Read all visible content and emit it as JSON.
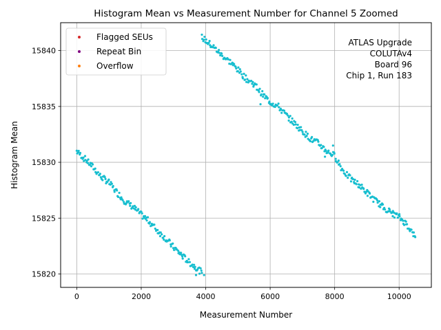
{
  "chart_data": {
    "type": "scatter",
    "title": "Histogram Mean vs Measurement Number for Channel 5 Zoomed",
    "xlabel": "Measurement Number",
    "ylabel": "Histogram Mean",
    "xlim": [
      -500,
      11000
    ],
    "ylim": [
      15818.8,
      15842.5
    ],
    "xticks": [
      0,
      2000,
      4000,
      6000,
      8000,
      10000
    ],
    "yticks": [
      15820,
      15825,
      15830,
      15835,
      15840
    ],
    "grid": true,
    "legend_position": "top-left",
    "legend": [
      {
        "label": "Flagged SEUs",
        "color": "#d62728"
      },
      {
        "label": "Repeat Bin",
        "color": "#800080"
      },
      {
        "label": "Overflow",
        "color": "#ff7f0e"
      }
    ],
    "annotation": [
      "ATLAS Upgrade",
      "COLUTAv4",
      "Board 96",
      "Chip 1, Run 183"
    ],
    "series": [
      {
        "color": "#17becf",
        "segments": [
          {
            "x": [
              0,
              250,
              500,
              750,
              1000,
              1250,
              1500,
              1750,
              2000,
              2250,
              2500,
              2750,
              3000,
              3250,
              3500,
              3750,
              3880
            ],
            "y": [
              15831.0,
              15830.3,
              15829.6,
              15828.7,
              15828.2,
              15827.3,
              15826.5,
              15826.0,
              15825.3,
              15824.7,
              15823.9,
              15823.2,
              15822.4,
              15821.7,
              15821.0,
              15820.5,
              15820.1
            ]
          },
          {
            "x": [
              3880,
              4250,
              4500,
              4750,
              5000,
              5250,
              5500,
              5750,
              6000,
              6250,
              6500,
              6750,
              7000,
              7250,
              7500,
              7750,
              8000,
              8250,
              8500,
              8750,
              9000,
              9250,
              9500,
              9750,
              10000,
              10250,
              10500
            ],
            "y": [
              15841.2,
              15840.3,
              15839.6,
              15839.0,
              15838.3,
              15837.5,
              15837.0,
              15836.1,
              15835.4,
              15835.0,
              15834.2,
              15833.5,
              15832.8,
              15832.1,
              15831.7,
              15831.0,
              15830.6,
              15829.3,
              15828.5,
              15828.0,
              15827.3,
              15826.6,
              15826.0,
              15825.5,
              15825.1,
              15824.4,
              15823.3
            ]
          }
        ],
        "outliers": [
          {
            "x": 7700,
            "y": 15830.5
          },
          {
            "x": 7950,
            "y": 15831.5
          },
          {
            "x": 5700,
            "y": 15835.2
          },
          {
            "x": 3950,
            "y": 15819.9
          },
          {
            "x": 3700,
            "y": 15819.9
          }
        ]
      }
    ]
  }
}
